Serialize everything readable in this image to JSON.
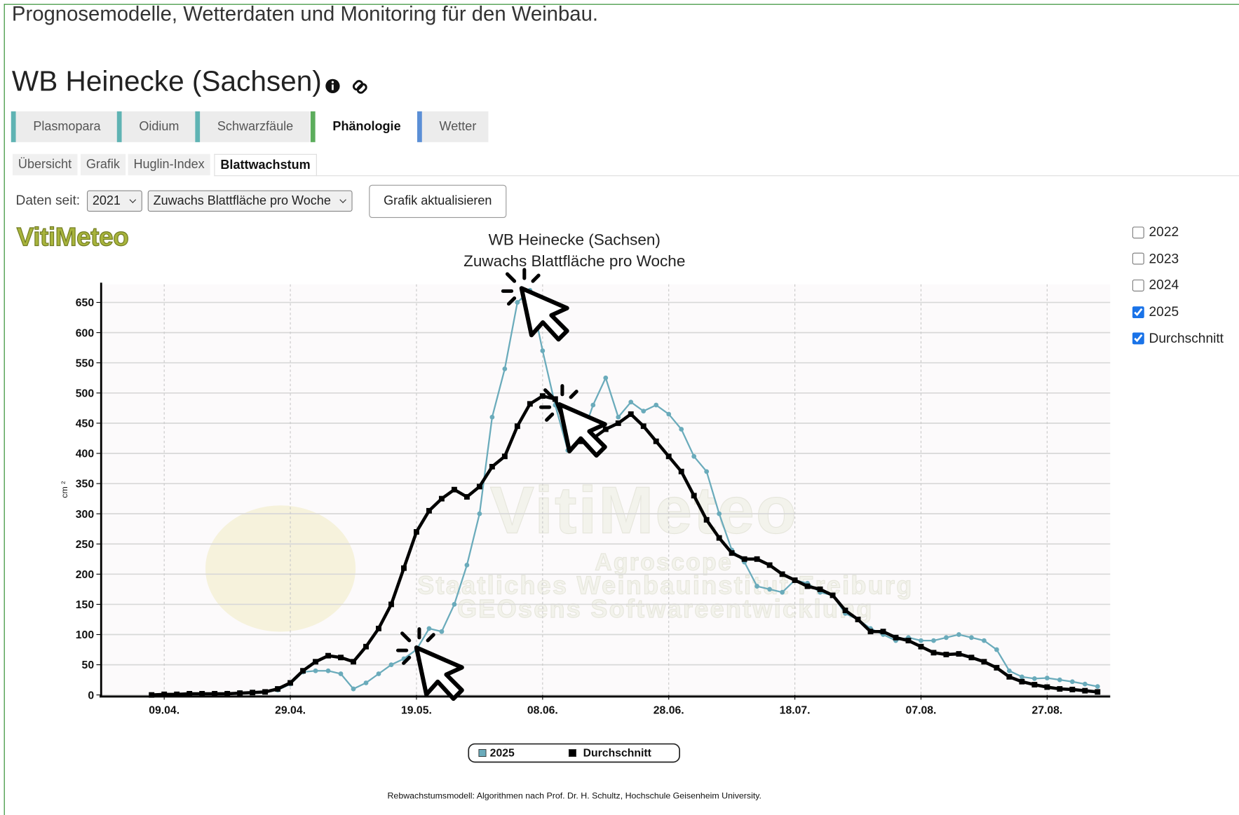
{
  "header": {
    "tagline": "Prognosemodelle, Wetterdaten und Monitoring für den Weinbau.",
    "title": "WB Heinecke (Sachsen)"
  },
  "tabs": [
    "Plasmopara",
    "Oidium",
    "Schwarzfäule",
    "Phänologie",
    "Wetter"
  ],
  "subtabs": [
    "Übersicht",
    "Grafik",
    "Huglin-Index",
    "Blattwachstum"
  ],
  "controls": {
    "since_label": "Daten seit:",
    "year": "2021",
    "measure": "Zuwachs Blattfläche pro Woche",
    "button": "Grafik aktualisieren"
  },
  "logo": "VitiMeteo",
  "toggles": [
    {
      "label": "2022",
      "checked": false
    },
    {
      "label": "2023",
      "checked": false
    },
    {
      "label": "2024",
      "checked": false
    },
    {
      "label": "2025",
      "checked": true
    },
    {
      "label": "Durchschnitt",
      "checked": true
    }
  ],
  "watermark": [
    "VitiMeteo",
    "Agroscope",
    "Staatliches Weinbauinstitut Freiburg",
    "GEOsens Softwareentwicklung"
  ],
  "chart_data": {
    "type": "line",
    "title": "WB Heinecke (Sachsen)",
    "subtitle": "Zuwachs Blattfläche pro Woche",
    "y_label": "cm ²",
    "x": [
      "07.04.",
      "09.04.",
      "11.04.",
      "13.04.",
      "15.04.",
      "17.04.",
      "19.04.",
      "21.04.",
      "23.04.",
      "25.04.",
      "27.04.",
      "29.04.",
      "01.05.",
      "03.05.",
      "05.05.",
      "07.05.",
      "09.05.",
      "11.05.",
      "13.05.",
      "15.05.",
      "17.05.",
      "19.05.",
      "21.05.",
      "23.05.",
      "25.05.",
      "27.05.",
      "29.05.",
      "31.05.",
      "02.06.",
      "04.06.",
      "06.06.",
      "08.06.",
      "10.06.",
      "12.06.",
      "14.06.",
      "16.06.",
      "18.06.",
      "20.06.",
      "22.06.",
      "24.06.",
      "26.06.",
      "28.06.",
      "30.06.",
      "02.07.",
      "04.07.",
      "06.07.",
      "08.07.",
      "10.07.",
      "12.07.",
      "14.07.",
      "16.07.",
      "18.07.",
      "20.07.",
      "22.07.",
      "24.07.",
      "26.07.",
      "28.07.",
      "30.07.",
      "01.08.",
      "03.08.",
      "05.08.",
      "07.08.",
      "09.08.",
      "11.08.",
      "13.08.",
      "15.08.",
      "17.08.",
      "19.08.",
      "21.08.",
      "23.08.",
      "25.08.",
      "27.08.",
      "29.08.",
      "31.08.",
      "02.09.",
      "04.09."
    ],
    "xticks": [
      "09.04.",
      "29.04.",
      "19.05.",
      "08.06.",
      "28.06.",
      "18.07.",
      "07.08.",
      "27.08."
    ],
    "ylim": [
      0,
      680
    ],
    "yticks": [
      0,
      50,
      100,
      150,
      200,
      250,
      300,
      350,
      400,
      450,
      500,
      550,
      600,
      650
    ],
    "grid": true,
    "series": [
      {
        "name": "2025",
        "color": "#6aabbb",
        "values": [
          0,
          0,
          1,
          1,
          1,
          2,
          3,
          4,
          4,
          5,
          8,
          18,
          38,
          40,
          40,
          35,
          10,
          20,
          35,
          50,
          60,
          75,
          110,
          105,
          150,
          215,
          300,
          460,
          540,
          650,
          670,
          570,
          480,
          405,
          420,
          480,
          525,
          460,
          485,
          470,
          480,
          465,
          440,
          395,
          370,
          300,
          240,
          220,
          180,
          175,
          170,
          190,
          185,
          170,
          165,
          135,
          125,
          110,
          100,
          90,
          95,
          90,
          90,
          95,
          100,
          95,
          90,
          75,
          40,
          30,
          27,
          28,
          25,
          22,
          18,
          14
        ]
      },
      {
        "name": "Durchschnitt",
        "color": "#000000",
        "values": [
          0,
          1,
          1,
          2,
          2,
          2,
          2,
          3,
          4,
          5,
          10,
          20,
          40,
          55,
          65,
          62,
          55,
          80,
          110,
          150,
          210,
          270,
          305,
          325,
          340,
          328,
          345,
          378,
          395,
          445,
          482,
          495,
          490,
          435,
          420,
          425,
          440,
          450,
          465,
          445,
          420,
          395,
          370,
          330,
          290,
          260,
          235,
          225,
          225,
          215,
          200,
          190,
          180,
          175,
          165,
          140,
          125,
          105,
          105,
          95,
          90,
          80,
          70,
          67,
          68,
          62,
          55,
          45,
          30,
          22,
          17,
          13,
          10,
          9,
          7,
          5
        ]
      }
    ]
  },
  "footnote": "Rebwachstumsmodell: Algorithmen nach Prof. Dr. H. Schultz, Hochschule Geisenheim University."
}
